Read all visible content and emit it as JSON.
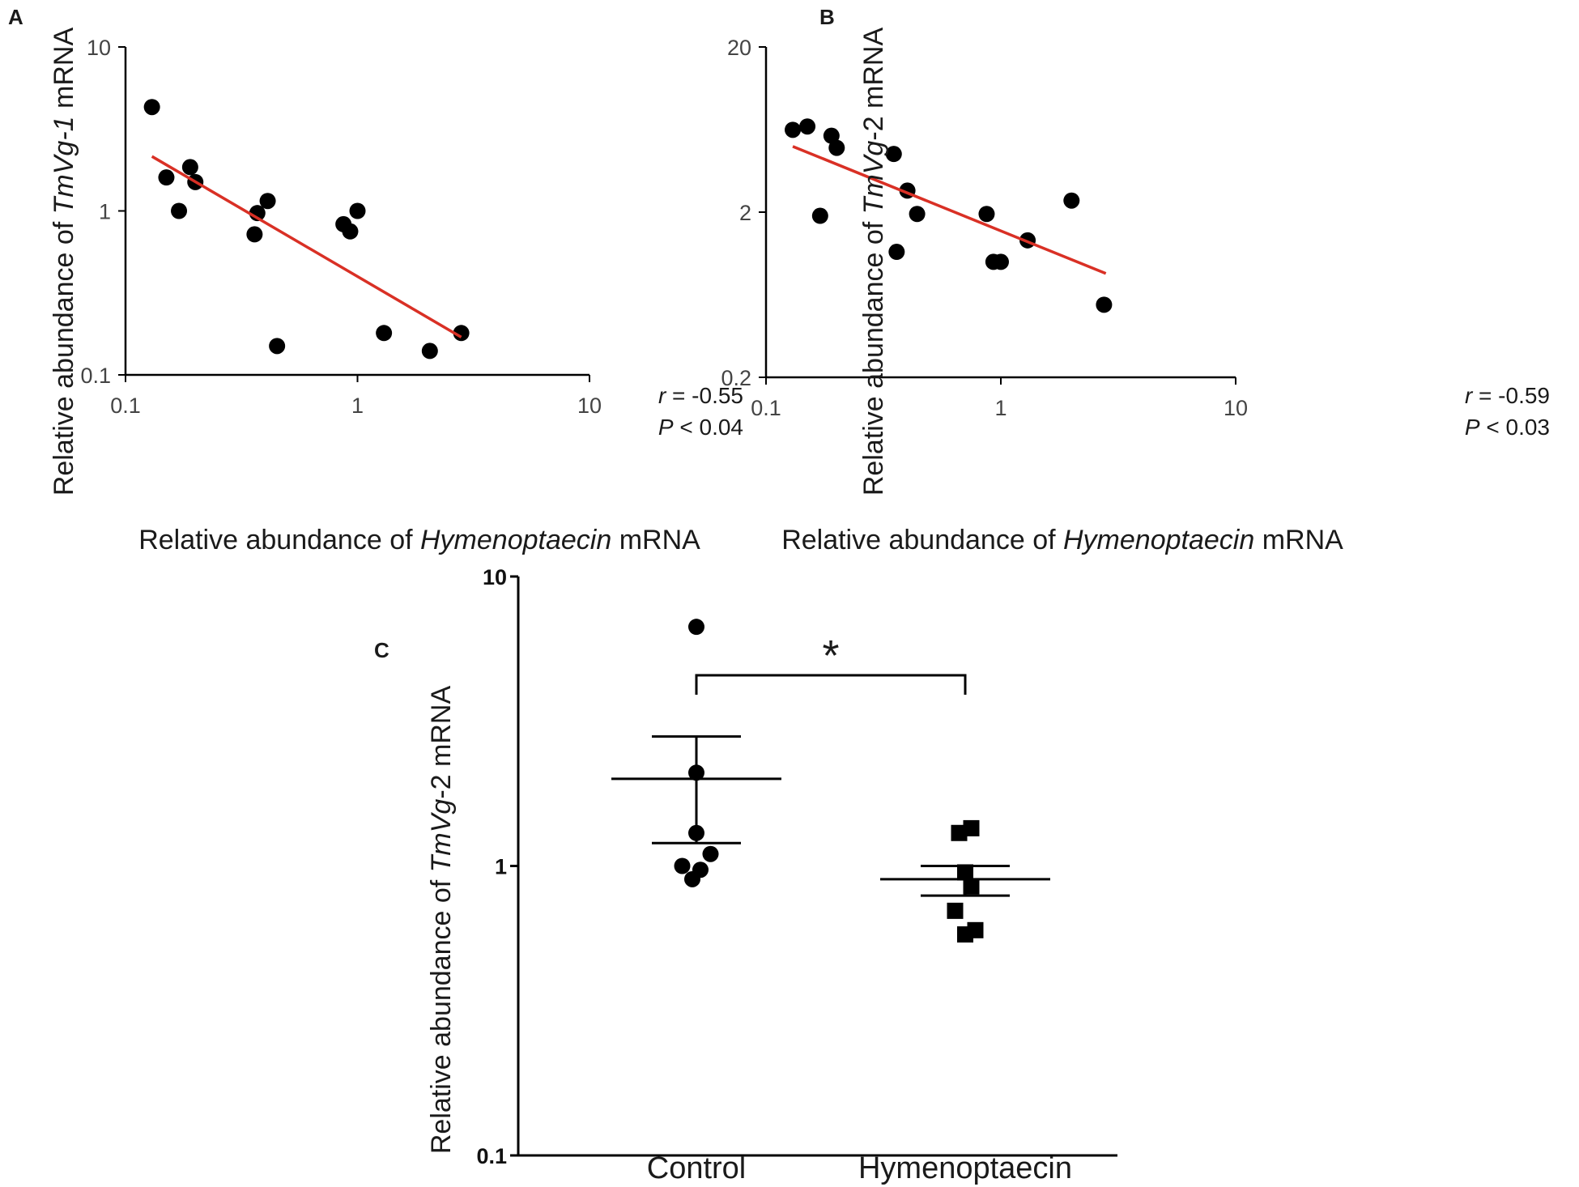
{
  "chart_data": [
    {
      "panel": "A",
      "type": "scatter",
      "x_scale": "log",
      "y_scale": "log",
      "xlim": [
        0.1,
        10
      ],
      "ylim": [
        0.1,
        10
      ],
      "x_ticks": [
        0.1,
        1,
        10
      ],
      "x_tick_labels": [
        "0.1",
        "1",
        "10"
      ],
      "y_ticks": [
        0.1,
        1,
        10
      ],
      "y_tick_labels": [
        "0.1",
        "1",
        "10"
      ],
      "xlabel": {
        "prefix": "Relative abundance of ",
        "italic": "Hymenoptaecin",
        "suffix": " mRNA"
      },
      "ylabel": {
        "prefix": "Relative abundance of ",
        "italic": "TmVg-1",
        "suffix": " mRNA"
      },
      "points": [
        {
          "x": 0.13,
          "y": 4.3
        },
        {
          "x": 0.15,
          "y": 1.6
        },
        {
          "x": 0.17,
          "y": 1.0
        },
        {
          "x": 0.19,
          "y": 1.85
        },
        {
          "x": 0.2,
          "y": 1.5
        },
        {
          "x": 0.36,
          "y": 0.72
        },
        {
          "x": 0.37,
          "y": 0.97
        },
        {
          "x": 0.41,
          "y": 1.15
        },
        {
          "x": 0.45,
          "y": 0.15
        },
        {
          "x": 0.87,
          "y": 0.83
        },
        {
          "x": 0.93,
          "y": 0.75
        },
        {
          "x": 1.0,
          "y": 1.0
        },
        {
          "x": 1.3,
          "y": 0.18
        },
        {
          "x": 2.05,
          "y": 0.14
        },
        {
          "x": 2.8,
          "y": 0.18
        }
      ],
      "fit_line": {
        "x": [
          0.13,
          2.8
        ],
        "y": [
          2.15,
          0.17
        ],
        "color": "#d93025"
      },
      "stats": {
        "r_label": "r",
        "r_value": " = -0.55",
        "p_label": "P",
        "p_value": " < 0.04"
      }
    },
    {
      "panel": "B",
      "type": "scatter",
      "x_scale": "log",
      "y_scale": "log",
      "xlim": [
        0.1,
        10
      ],
      "ylim": [
        0.2,
        20
      ],
      "x_ticks": [
        0.1,
        1,
        10
      ],
      "x_tick_labels": [
        "0.1",
        "1",
        "10"
      ],
      "y_ticks": [
        0.2,
        2,
        20
      ],
      "y_tick_labels": [
        "0.2",
        "2",
        "20"
      ],
      "xlabel": {
        "prefix": "Relative abundance of ",
        "italic": "Hymenoptaecin",
        "suffix": " mRNA"
      },
      "ylabel": {
        "prefix": "Relative abundance of ",
        "italic": "TmVg",
        "suffix": "-2 mRNA"
      },
      "points": [
        {
          "x": 0.13,
          "y": 6.3
        },
        {
          "x": 0.15,
          "y": 6.6
        },
        {
          "x": 0.17,
          "y": 1.9
        },
        {
          "x": 0.19,
          "y": 5.8
        },
        {
          "x": 0.2,
          "y": 4.9
        },
        {
          "x": 0.35,
          "y": 4.5
        },
        {
          "x": 0.36,
          "y": 1.15
        },
        {
          "x": 0.4,
          "y": 2.7
        },
        {
          "x": 0.44,
          "y": 1.95
        },
        {
          "x": 0.87,
          "y": 1.95
        },
        {
          "x": 0.93,
          "y": 1.0
        },
        {
          "x": 1.0,
          "y": 1.0
        },
        {
          "x": 1.3,
          "y": 1.35
        },
        {
          "x": 2.0,
          "y": 2.35
        },
        {
          "x": 2.75,
          "y": 0.55
        }
      ],
      "fit_line": {
        "x": [
          0.13,
          2.8
        ],
        "y": [
          5.0,
          0.85
        ],
        "color": "#d93025"
      },
      "stats": {
        "r_label": "r",
        "r_value": " = -0.59",
        "p_label": "P",
        "p_value": " < 0.03"
      }
    },
    {
      "panel": "C",
      "type": "scatter",
      "y_scale": "log",
      "ylim": [
        0.1,
        10
      ],
      "y_ticks": [
        0.1,
        1,
        10
      ],
      "y_tick_labels": [
        "0.1",
        "1",
        "10"
      ],
      "categories": [
        "Control",
        "Hymenoptaecin"
      ],
      "ylabel": {
        "prefix": "Relative abundance of ",
        "italic": "TmVg",
        "suffix": "-2 mRNA"
      },
      "series": [
        {
          "name": "Control",
          "marker": "circle",
          "points": [
            {
              "x_offset": 0,
              "y": 6.7
            },
            {
              "x_offset": 0,
              "y": 2.1
            },
            {
              "x_offset": 0,
              "y": 1.3
            },
            {
              "x_offset": -0.35,
              "y": 1.0
            },
            {
              "x_offset": -0.1,
              "y": 0.9
            },
            {
              "x_offset": 0.1,
              "y": 0.97
            },
            {
              "x_offset": 0.35,
              "y": 1.1
            }
          ],
          "mean": 2.0,
          "sem_upper": 2.8,
          "sem_lower": 1.2
        },
        {
          "name": "Hymenoptaecin",
          "marker": "square",
          "points": [
            {
              "x_offset": -0.15,
              "y": 1.3
            },
            {
              "x_offset": 0.15,
              "y": 1.35
            },
            {
              "x_offset": 0,
              "y": 0.95
            },
            {
              "x_offset": 0.15,
              "y": 0.85
            },
            {
              "x_offset": -0.25,
              "y": 0.7
            },
            {
              "x_offset": 0.25,
              "y": 0.6
            },
            {
              "x_offset": 0,
              "y": 0.58
            }
          ],
          "mean": 0.9,
          "sem_upper": 1.0,
          "sem_lower": 0.79
        }
      ],
      "significance": {
        "between": [
          "Control",
          "Hymenoptaecin"
        ],
        "marker": "*"
      }
    }
  ],
  "panel_labels": [
    "A",
    "B",
    "C"
  ],
  "colors": {
    "fit_line": "#d93025",
    "points": "#000000",
    "axis": "#000000"
  }
}
